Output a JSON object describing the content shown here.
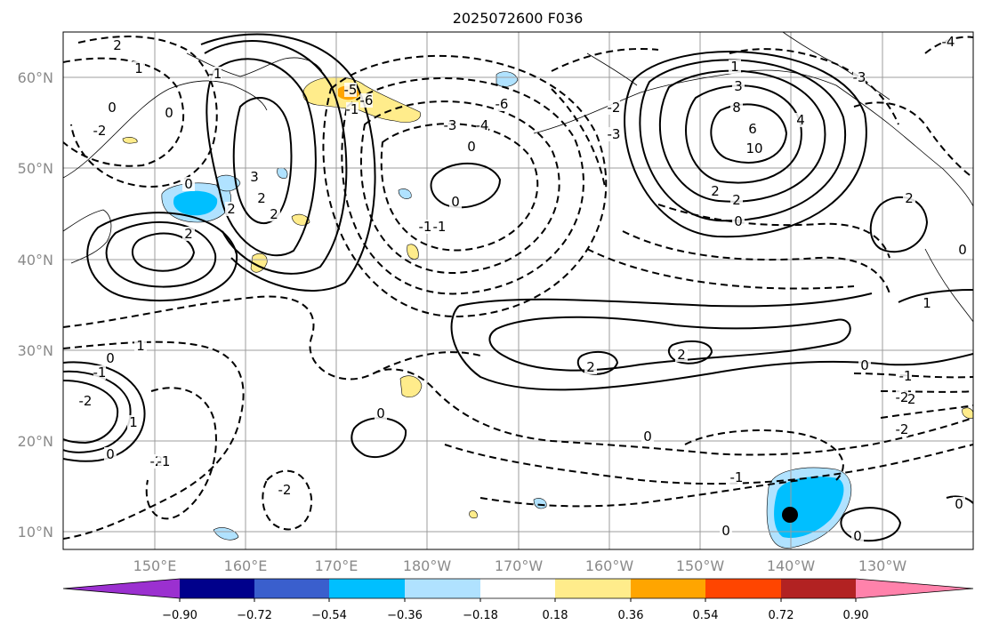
{
  "title": "2025072600 F036",
  "lat_labels": [
    "10°N",
    "20°N",
    "30°N",
    "40°N",
    "50°N",
    "60°N"
  ],
  "lon_labels": [
    "150°E",
    "160°E",
    "170°E",
    "180°W",
    "170°W",
    "160°W",
    "150°W",
    "140°W",
    "130°W"
  ],
  "colorbar": {
    "tick_labels": [
      "−0.90",
      "−0.72",
      "−0.54",
      "−0.36",
      "−0.18",
      "0.18",
      "0.36",
      "0.54",
      "0.72",
      "0.90"
    ],
    "colors": [
      "#9b30d0",
      "#00008b",
      "#3a5fcd",
      "#00bfff",
      "#b0e2ff",
      "#ffffff",
      "#ffec8b",
      "#ffa500",
      "#ff4500",
      "#b22222",
      "#ff82ab"
    ]
  },
  "contour_labels": [
    "2",
    "1",
    "0",
    "-2",
    "-1",
    "0",
    "2",
    "3",
    "2",
    "2",
    "0",
    "2",
    "-6",
    "-4",
    "-3",
    "-5",
    "0",
    "-1",
    "0",
    "-1",
    "-6",
    "-1",
    "-3",
    "-2",
    "1",
    "3",
    "8",
    "6",
    "10",
    "4",
    "2",
    "2",
    "0",
    "2",
    "1",
    "0",
    "-1",
    "-2",
    "1",
    "0",
    "-1",
    "-2",
    "0",
    "1",
    "2",
    "2",
    "0",
    "0",
    "-2",
    "-2",
    "-1",
    "0",
    "-2",
    "-1",
    "-2",
    "0",
    "0",
    "-3",
    "-4",
    "0"
  ],
  "marker": "storm-center"
}
